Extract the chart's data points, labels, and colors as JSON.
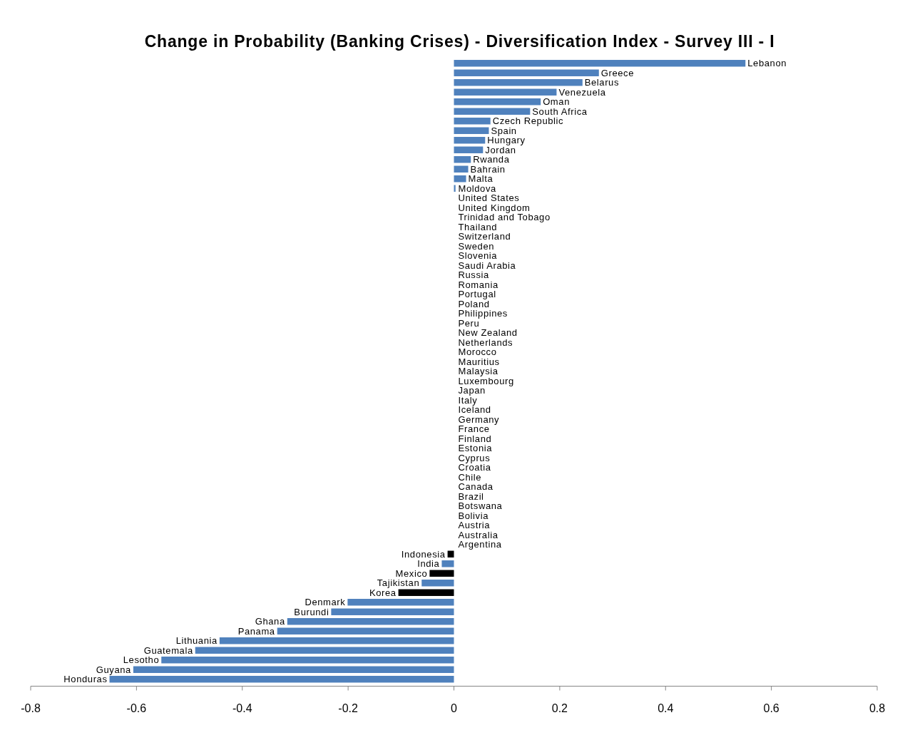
{
  "chart_data": {
    "type": "bar",
    "orientation": "horizontal",
    "title": "Change in Probability (Banking Crises) - Diversification Index - Survey III - I",
    "categories": [
      "Lebanon",
      "Greece",
      "Belarus",
      "Venezuela",
      "Oman",
      "South Africa",
      "Czech Republic",
      "Spain",
      "Hungary",
      "Jordan",
      "Rwanda",
      "Bahrain",
      "Malta",
      "Moldova",
      "United States",
      "United Kingdom",
      "Trinidad and Tobago",
      "Thailand",
      "Switzerland",
      "Sweden",
      "Slovenia",
      "Saudi Arabia",
      "Russia",
      "Romania",
      "Portugal",
      "Poland",
      "Philippines",
      "Peru",
      "New Zealand",
      "Netherlands",
      "Morocco",
      "Mauritius",
      "Malaysia",
      "Luxembourg",
      "Japan",
      "Italy",
      "Iceland",
      "Germany",
      "France",
      "Finland",
      "Estonia",
      "Cyprus",
      "Croatia",
      "Chile",
      "Canada",
      "Brazil",
      "Botswana",
      "Bolivia",
      "Austria",
      "Australia",
      "Argentina",
      "Indonesia",
      "India",
      "Mexico",
      "Tajikistan",
      "Korea",
      "Denmark",
      "Burundi",
      "Ghana",
      "Panama",
      "Lithuania",
      "Guatemala",
      "Lesotho",
      "Guyana",
      "Honduras"
    ],
    "values": [
      0.551,
      0.274,
      0.243,
      0.194,
      0.164,
      0.144,
      0.069,
      0.066,
      0.059,
      0.055,
      0.032,
      0.027,
      0.023,
      0.003,
      0,
      0,
      0,
      0,
      0,
      0,
      0,
      0,
      0,
      0,
      0,
      0,
      0,
      0,
      0,
      0,
      0,
      0,
      0,
      0,
      0,
      0,
      0,
      0,
      0,
      0,
      0,
      0,
      0,
      0,
      0,
      0,
      0,
      0,
      0,
      0,
      0,
      -0.012,
      -0.023,
      -0.046,
      -0.061,
      -0.105,
      -0.201,
      -0.232,
      -0.315,
      -0.334,
      -0.443,
      -0.489,
      -0.553,
      -0.606,
      -0.651
    ],
    "colors": [
      "#4f81bd",
      "#4f81bd",
      "#4f81bd",
      "#4f81bd",
      "#4f81bd",
      "#4f81bd",
      "#4f81bd",
      "#4f81bd",
      "#4f81bd",
      "#4f81bd",
      "#4f81bd",
      "#4f81bd",
      "#4f81bd",
      "#4f81bd",
      "#4f81bd",
      "#4f81bd",
      "#4f81bd",
      "#4f81bd",
      "#4f81bd",
      "#4f81bd",
      "#4f81bd",
      "#4f81bd",
      "#4f81bd",
      "#4f81bd",
      "#4f81bd",
      "#4f81bd",
      "#4f81bd",
      "#4f81bd",
      "#4f81bd",
      "#4f81bd",
      "#4f81bd",
      "#4f81bd",
      "#4f81bd",
      "#4f81bd",
      "#4f81bd",
      "#4f81bd",
      "#4f81bd",
      "#4f81bd",
      "#4f81bd",
      "#4f81bd",
      "#4f81bd",
      "#4f81bd",
      "#4f81bd",
      "#4f81bd",
      "#4f81bd",
      "#4f81bd",
      "#4f81bd",
      "#4f81bd",
      "#4f81bd",
      "#4f81bd",
      "#4f81bd",
      "#000000",
      "#4f81bd",
      "#000000",
      "#4f81bd",
      "#000000",
      "#4f81bd",
      "#4f81bd",
      "#4f81bd",
      "#4f81bd",
      "#4f81bd",
      "#4f81bd",
      "#4f81bd",
      "#4f81bd",
      "#4f81bd"
    ],
    "xlim": [
      -0.8,
      0.8
    ],
    "xticks": [
      -0.8,
      -0.6,
      -0.4,
      -0.2,
      0,
      0.2,
      0.4,
      0.6,
      0.8
    ],
    "grid": false
  }
}
